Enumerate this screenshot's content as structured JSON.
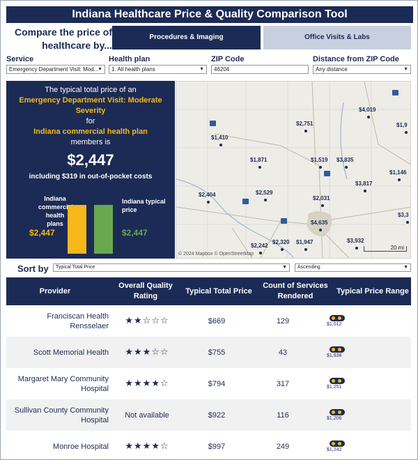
{
  "title": "Indiana Healthcare Price & Quality Comparison Tool",
  "compare_label": "Compare the price of healthcare by...",
  "tabs": [
    {
      "label": "Procedures & Imaging",
      "active": true
    },
    {
      "label": "Office Visits & Labs",
      "active": false
    }
  ],
  "filters": {
    "service": {
      "label": "Service",
      "value": "Emergency Department Visit: Mod..."
    },
    "health_plan": {
      "label": "Health plan",
      "value": "1. All health plans"
    },
    "zip": {
      "label": "ZIP Code",
      "value": "46204"
    },
    "distance": {
      "label": "Distance from ZIP Code",
      "value": "Any distance"
    }
  },
  "summary": {
    "line1": "The typical total price of an",
    "service_name": "Emergency Department Visit: Moderate Severity",
    "for": "for",
    "plan_name": "Indiana commercial health plan",
    "members_is": "members is",
    "price": "$2,447",
    "oop": "including $319 in out-of-pocket costs",
    "bar1_label": "Indiana commercial health plans",
    "bar1_value": "$2,447",
    "bar2_label": "Indiana typical price",
    "bar2_value": "$2,447",
    "bar1_amount": 2447,
    "bar2_amount": 2447
  },
  "map": {
    "credit": "© 2024 Mapbox  © OpenStreetMap",
    "scale": "20 mi",
    "markers": [
      {
        "label": "$2,751"
      },
      {
        "label": "$4,019"
      },
      {
        "label": "$1,9"
      },
      {
        "label": "$1,410"
      },
      {
        "label": "$1,871"
      },
      {
        "label": "$1,519"
      },
      {
        "label": "$3,835"
      },
      {
        "label": "$1,146"
      },
      {
        "label": "$2,404"
      },
      {
        "label": "$2,529"
      },
      {
        "label": "$3,817"
      },
      {
        "label": "$2,031"
      },
      {
        "label": "$4,635"
      },
      {
        "label": "$3,3"
      },
      {
        "label": "$2,242"
      },
      {
        "label": "$2,320"
      },
      {
        "label": "$1,947"
      },
      {
        "label": "$3,932"
      }
    ]
  },
  "sort": {
    "label": "Sort by",
    "field": "Typical Total Price",
    "order": "Ascending"
  },
  "table": {
    "headers": [
      "Provider",
      "Overall Quality Rating",
      "Typical Total Price",
      "Count of Services Rendered",
      "Typical Price Range"
    ],
    "rows": [
      {
        "provider": "Franciscan Health Rensselaer",
        "rating": "★★☆☆☆",
        "price": "$669",
        "count": "129",
        "range": "$1,012"
      },
      {
        "provider": "Scott Memorial Health",
        "rating": "★★★☆☆",
        "price": "$755",
        "count": "43",
        "range": "$1,938"
      },
      {
        "provider": "Margaret Mary Community Hospital",
        "rating": "★★★★☆",
        "price": "$794",
        "count": "317",
        "range": "$1,251"
      },
      {
        "provider": "Sullivan County Community Hospital",
        "rating": "Not available",
        "price": "$922",
        "count": "116",
        "range": "$1,206"
      },
      {
        "provider": "Monroe Hospital",
        "rating": "★★★★☆",
        "price": "$997",
        "count": "249",
        "range": "$1,242"
      }
    ]
  },
  "colors": {
    "navy": "#1c2b55",
    "gold": "#f6b81a",
    "green": "#6aa84f"
  }
}
